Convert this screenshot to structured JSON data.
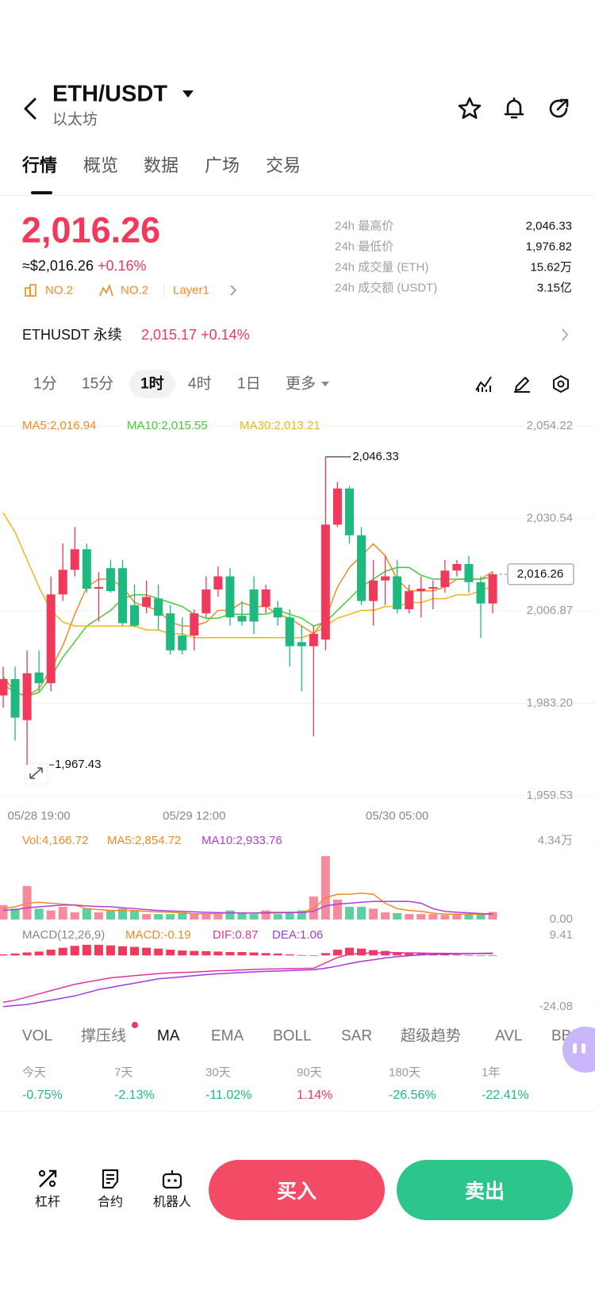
{
  "header": {
    "pair": "ETH/USDT",
    "name": "以太坊"
  },
  "tabs": [
    "行情",
    "概览",
    "数据",
    "广场",
    "交易"
  ],
  "price": {
    "last": "2,016.26",
    "usd": "≈$2,016.26",
    "change": "+0.16%",
    "badges": [
      "NO.2",
      "NO.2",
      "Layer1"
    ]
  },
  "stats": [
    {
      "label": "24h 最高价",
      "value": "2,046.33"
    },
    {
      "label": "24h 最低价",
      "value": "1,976.82"
    },
    {
      "label": "24h 成交量 (ETH)",
      "value": "15.62万"
    },
    {
      "label": "24h 成交额 (USDT)",
      "value": "3.15亿"
    }
  ],
  "perpetual": {
    "name": "ETHUSDT 永续",
    "price": "2,015.17",
    "change": "+0.14%"
  },
  "intervals": [
    "1分",
    "15分",
    "1时",
    "4时",
    "1日",
    "更多"
  ],
  "chart_data": {
    "type": "candlestick",
    "up_color": "#f0395b",
    "down_color": "#1fb980",
    "grid": true,
    "categories": [
      null,
      null,
      null,
      "05/28 19:00",
      null,
      null,
      null,
      null,
      null,
      null,
      null,
      null,
      null,
      null,
      null,
      null,
      "05/29 12:00",
      null,
      null,
      null,
      null,
      null,
      null,
      null,
      null,
      null,
      null,
      null,
      null,
      null,
      null,
      null,
      null,
      "05/30 05:00",
      null,
      null,
      null,
      null,
      null,
      null,
      null,
      null
    ],
    "ohlc": [
      [
        1985.21,
        1992.57,
        1982.05,
        1989.42
      ],
      [
        1989.42,
        1992.57,
        1973.64,
        1979.53
      ],
      [
        1978.9,
        1996.78,
        1967.43,
        1990.89
      ],
      [
        1991.1,
        1996.78,
        1986.26,
        1988.36
      ],
      [
        1988.36,
        2015.72,
        1986.26,
        2011.09
      ],
      [
        2011.09,
        2024.13,
        2009.4,
        2017.4
      ],
      [
        2017.4,
        2028.34,
        2015.72,
        2022.66
      ],
      [
        2022.66,
        2024.13,
        2011.51,
        2012.56
      ],
      [
        2012.56,
        2016.77,
        2004.14,
        2012.98
      ],
      [
        2017.82,
        2019.92,
        2011.51,
        2011.93
      ],
      [
        2017.82,
        2019.92,
        2003.09,
        2003.72
      ],
      [
        2008.35,
        2013.61,
        2002.67,
        2003.09
      ],
      [
        2007.93,
        2014.66,
        2006.25,
        2010.46
      ],
      [
        2010.04,
        2013.61,
        2002.04,
        2005.62
      ],
      [
        2006.25,
        2008.35,
        1995.73,
        1996.78
      ],
      [
        2000.57,
        2005.2,
        1995.73,
        1996.78
      ],
      [
        2000.57,
        2007.3,
        1996.78,
        2006.25
      ],
      [
        2006.25,
        2015.72,
        2005.2,
        2012.35
      ],
      [
        2012.35,
        2018.24,
        2010.46,
        2015.72
      ],
      [
        2015.72,
        2017.82,
        2003.09,
        2005.2
      ],
      [
        2005.62,
        2009.4,
        2003.09,
        2004.14
      ],
      [
        2012.35,
        2015.72,
        2000.99,
        2004.14
      ],
      [
        2007.93,
        2013.61,
        2006.25,
        2012.35
      ],
      [
        2007.72,
        2009.4,
        2003.09,
        2005.2
      ],
      [
        2005.2,
        2007.3,
        1992.57,
        1997.83
      ],
      [
        1998.88,
        2003.09,
        1986.26,
        1997.83
      ],
      [
        1997.83,
        2003.09,
        1974.69,
        2000.99
      ],
      [
        1999.52,
        2046.33,
        1996.78,
        2028.97
      ],
      [
        2028.97,
        2039.91,
        2028.34,
        2038.23
      ],
      [
        2038.23,
        2038.86,
        2024.13,
        2026.24
      ],
      [
        2026.24,
        2028.34,
        2008.35,
        2009.4
      ],
      [
        2009.4,
        2019.92,
        2003.09,
        2014.66
      ],
      [
        2014.66,
        2020.98,
        2008.35,
        2015.72
      ],
      [
        2015.72,
        2019.92,
        2006.25,
        2007.3
      ],
      [
        2007.3,
        2013.61,
        2006.25,
        2011.93
      ],
      [
        2011.93,
        2015.72,
        2005.2,
        2012.56
      ],
      [
        2012.56,
        2014.66,
        2007.3,
        2012.98
      ],
      [
        2012.98,
        2019.92,
        2011.51,
        2017.19
      ],
      [
        2017.19,
        2019.92,
        2015.72,
        2018.87
      ],
      [
        2018.87,
        2020.98,
        2011.51,
        2014.24
      ],
      [
        2014.24,
        2015.72,
        1999.94,
        2008.77
      ],
      [
        2008.77,
        2016.77,
        2006.25,
        2016.26
      ]
    ],
    "ylim": [
      1959.53,
      2054.22
    ],
    "yticks": [
      {
        "value": 2054.22,
        "label": "2,054.22"
      },
      {
        "value": 2030.54,
        "label": "2,030.54"
      },
      {
        "value": 2006.87,
        "label": "2,006.87"
      },
      {
        "value": 1983.2,
        "label": "1,983.20"
      },
      {
        "value": 1959.53,
        "label": "1,959.53"
      }
    ],
    "ma_lines": [
      {
        "name": "MA5:2,016.94",
        "color": "#f08a24",
        "values": [
          1990,
          1986,
          1985,
          1987,
          1992,
          1998,
          2006,
          2013,
          2015,
          2015,
          2013,
          2009,
          2008,
          2007,
          2004,
          2003,
          2003,
          2004,
          2007,
          2007,
          2009,
          2008,
          2008,
          2006,
          2005,
          2003,
          2001,
          2005,
          2013,
          2018,
          2021,
          2024,
          2021,
          2015,
          2012,
          2012,
          2012,
          2013,
          2015,
          2015,
          2015,
          2016.94
        ]
      },
      {
        "name": "MA10:2,015.55",
        "color": "#47c93a",
        "values": [
          1988,
          1986,
          1985,
          1986,
          1990,
          1995,
          1999,
          2003,
          2005,
          2007,
          2010,
          2011,
          2011,
          2010,
          2009,
          2008,
          2006,
          2005,
          2005,
          2006,
          2006,
          2006,
          2006,
          2007,
          2006,
          2005,
          2003,
          2004,
          2007,
          2010,
          2013,
          2015,
          2017,
          2018,
          2018,
          2016,
          2015,
          2015,
          2015,
          2015,
          2015,
          2015.55
        ]
      },
      {
        "name": "MA30:2,013.21",
        "color": "#f2b51b",
        "values": [
          2032,
          2027,
          2020,
          2013,
          2007,
          2004,
          2003,
          2003,
          2003,
          2003,
          2003,
          2003,
          2002,
          2002,
          2001,
          2001,
          2000,
          2000,
          2000,
          2000,
          2000,
          2000,
          2000,
          2000,
          2000,
          2000,
          2001,
          2003,
          2005,
          2006,
          2007,
          2007,
          2008,
          2008,
          2009,
          2009,
          2010,
          2010,
          2011,
          2011,
          2012,
          2013.21
        ]
      }
    ],
    "high_label": {
      "value": 2046.33,
      "label": "2,046.33"
    },
    "low_label": {
      "value": 1967.43,
      "label": "1,967.43"
    },
    "last_price": {
      "value": 2016.26,
      "label": "2,016.26"
    },
    "volume": {
      "title": "Vol:4,166.72",
      "title_color": "#f08a24",
      "values": [
        0.8,
        0.6,
        1.85,
        0.6,
        0.5,
        0.7,
        0.4,
        0.6,
        0.4,
        0.5,
        0.6,
        0.5,
        0.3,
        0.3,
        0.3,
        0.4,
        0.3,
        0.3,
        0.3,
        0.5,
        0.4,
        0.3,
        0.5,
        0.3,
        0.4,
        0.5,
        1.27,
        3.5,
        1.1,
        0.7,
        0.7,
        0.6,
        0.4,
        0.35,
        0.3,
        0.3,
        0.3,
        0.25,
        0.3,
        0.3,
        0.3,
        0.42
      ],
      "ylim": [
        0,
        4.34
      ],
      "yticks": [
        {
          "value": 4.34,
          "label": "4.34万"
        },
        {
          "value": 0,
          "label": "0.00"
        }
      ],
      "series": [
        {
          "name": "MA5:2,854.72",
          "color": "#f08a24",
          "values": [
            0.6,
            0.7,
            0.9,
            0.95,
            0.9,
            0.85,
            0.8,
            0.6,
            0.55,
            0.5,
            0.5,
            0.5,
            0.45,
            0.42,
            0.4,
            0.36,
            0.32,
            0.32,
            0.33,
            0.36,
            0.36,
            0.36,
            0.4,
            0.4,
            0.4,
            0.4,
            0.6,
            1.2,
            1.4,
            1.4,
            1.45,
            1.4,
            0.9,
            0.6,
            0.5,
            0.45,
            0.35,
            0.3,
            0.3,
            0.29,
            0.29,
            0.285
          ]
        },
        {
          "name": "MA10:2,933.76",
          "color": "#b03fd8",
          "values": [
            0.5,
            0.55,
            0.65,
            0.7,
            0.75,
            0.8,
            0.8,
            0.75,
            0.72,
            0.7,
            0.65,
            0.6,
            0.55,
            0.5,
            0.47,
            0.45,
            0.42,
            0.4,
            0.38,
            0.37,
            0.36,
            0.35,
            0.36,
            0.37,
            0.38,
            0.38,
            0.45,
            0.75,
            0.85,
            0.9,
            0.95,
            1.0,
            1.0,
            1.0,
            1.0,
            0.9,
            0.6,
            0.45,
            0.4,
            0.37,
            0.33,
            0.293
          ]
        }
      ]
    },
    "macd": {
      "title": "MACD(12,26,9)",
      "ylim": [
        -24.08,
        9.41
      ],
      "yticks": [
        9.41,
        -24.08
      ],
      "series": [
        {
          "name": "MACD:-0.19",
          "kind": "histogram",
          "color": "#f08a24",
          "values": [
            0.5,
            0.9,
            1.4,
            1.8,
            2.7,
            3.6,
            4.5,
            5,
            5,
            4.7,
            4.3,
            4,
            3.6,
            3.2,
            2.7,
            2.3,
            2.1,
            2,
            1.8,
            1.6,
            1.6,
            1.4,
            1.1,
            0.9,
            0.5,
            0.2,
            -0.2,
            1.1,
            2.7,
            3.6,
            3.2,
            2.5,
            2.1,
            1.6,
            1.2,
            0.9,
            0.7,
            0.5,
            0.4,
            0.2,
            -0.1,
            -0.19
          ]
        },
        {
          "name": "DIF:0.87",
          "kind": "line",
          "color": "#e5359c",
          "values": [
            -22,
            -21,
            -19.5,
            -18,
            -16.5,
            -15,
            -13.5,
            -12.5,
            -11.5,
            -10.5,
            -10,
            -9.5,
            -9,
            -8.5,
            -8.2,
            -8,
            -7.8,
            -7.5,
            -7.2,
            -7,
            -6.8,
            -6.6,
            -6.4,
            -6.3,
            -6.2,
            -6.1,
            -6,
            -3.5,
            -1,
            0.5,
            1,
            1.2,
            1.3,
            1.3,
            1.2,
            1.1,
            1,
            1,
            0.9,
            0.9,
            0.9,
            0.87
          ]
        },
        {
          "name": "DEA:1.06",
          "kind": "line",
          "color": "#a03be0",
          "values": [
            -24,
            -23.5,
            -23,
            -22,
            -21,
            -20,
            -19,
            -17.5,
            -16,
            -15,
            -14,
            -13,
            -12,
            -11,
            -10.5,
            -10,
            -9.5,
            -9,
            -8.6,
            -8.3,
            -8,
            -7.7,
            -7.5,
            -7.3,
            -7.1,
            -6.9,
            -6.7,
            -6,
            -5,
            -3.8,
            -2.8,
            -2,
            -1.2,
            -0.6,
            -0.1,
            0.3,
            0.5,
            0.7,
            0.8,
            0.9,
            1,
            1.06
          ]
        }
      ]
    }
  },
  "indicators": [
    "VOL",
    "撑压线",
    "MA",
    "EMA",
    "BOLL",
    "SAR",
    "超级趋势",
    "AVL",
    "BBI"
  ],
  "performance": [
    {
      "period": "今天",
      "change": "-0.75%"
    },
    {
      "period": "7天",
      "change": "-2.13%"
    },
    {
      "period": "30天",
      "change": "-11.02%"
    },
    {
      "period": "90天",
      "change": "1.14%"
    },
    {
      "period": "180天",
      "change": "-26.56%"
    },
    {
      "period": "1年",
      "change": "-22.41%"
    }
  ],
  "toolbar": [
    "杠杆",
    "合约",
    "机器人"
  ],
  "buttons": {
    "buy": "买入",
    "sell": "卖出"
  }
}
